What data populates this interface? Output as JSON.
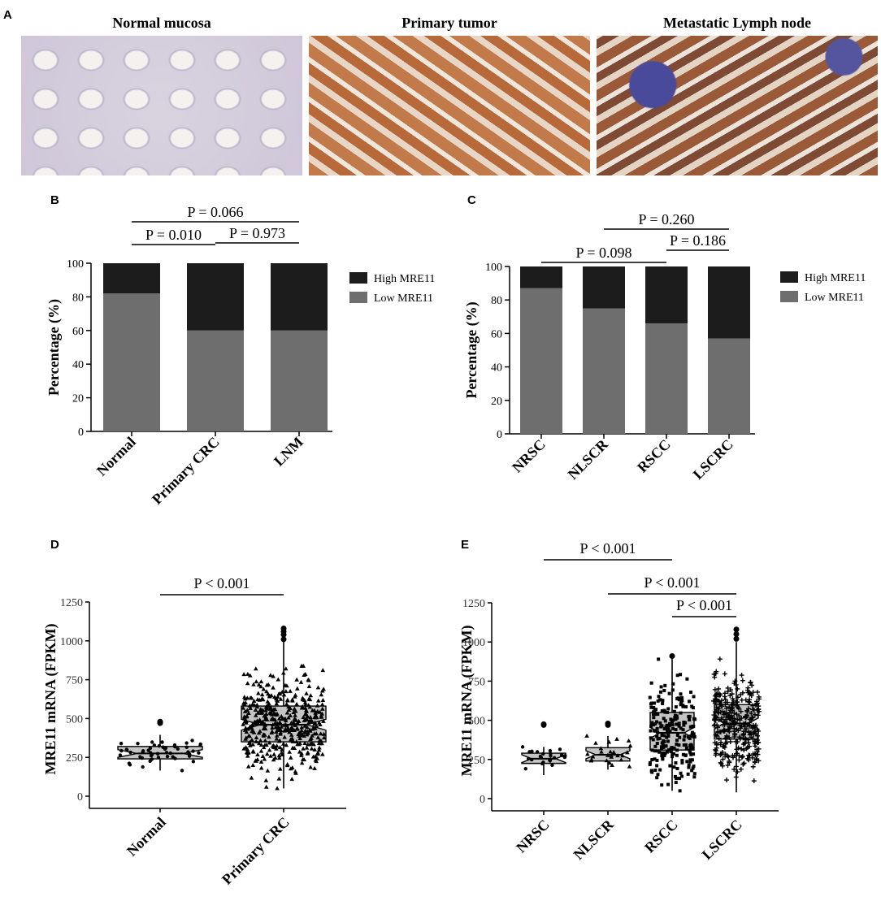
{
  "panels": {
    "A": "A",
    "B": "B",
    "C": "C",
    "D": "D",
    "E": "E"
  },
  "images": {
    "normal_title": "Normal mucosa",
    "primary_title": "Primary tumor",
    "meta_title": "Metastatic Lymph node"
  },
  "colors": {
    "high": "#1c1c1c",
    "low": "#6e6e6e",
    "box": "#c4c4c4"
  },
  "chart_data": [
    {
      "panel": "B",
      "type": "bar",
      "stacked": true,
      "categories": [
        "Normal",
        "Primary CRC",
        "LNM"
      ],
      "series": [
        {
          "name": "Low MRE11",
          "values": [
            82,
            60,
            60
          ]
        },
        {
          "name": "High MRE11",
          "values": [
            18,
            40,
            40
          ]
        }
      ],
      "ylabel": "Percentage (%)",
      "ylim": [
        0,
        100
      ],
      "yticks": [
        "0",
        "20",
        "40",
        "60",
        "80",
        "100"
      ],
      "legend": [
        "High MRE11",
        "Low MRE11"
      ],
      "legend_position": "right",
      "annotations": [
        {
          "text": "P = 0.066",
          "from": 0,
          "to": 2
        },
        {
          "text": "P = 0.010",
          "from": 0,
          "to": 1
        },
        {
          "text": "P = 0.973",
          "from": 1,
          "to": 2
        }
      ]
    },
    {
      "panel": "C",
      "type": "bar",
      "stacked": true,
      "categories": [
        "NRSC",
        "NLSCR",
        "RSCC",
        "LSCRC"
      ],
      "series": [
        {
          "name": "Low MRE11",
          "values": [
            87,
            75,
            66,
            57
          ]
        },
        {
          "name": "High MRE11",
          "values": [
            13,
            25,
            34,
            43
          ]
        }
      ],
      "ylabel": "Percentage (%)",
      "ylim": [
        0,
        100
      ],
      "yticks": [
        "0",
        "20",
        "40",
        "60",
        "80",
        "100"
      ],
      "legend": [
        "High MRE11",
        "Low MRE11"
      ],
      "legend_position": "right",
      "annotations": [
        {
          "text": "P = 0.260",
          "from": 1,
          "to": 3
        },
        {
          "text": "P = 0.098",
          "from": 0,
          "to": 2
        },
        {
          "text": "P = 0.186",
          "from": 2,
          "to": 3
        }
      ]
    },
    {
      "panel": "D",
      "type": "scatter",
      "subtype": "notched boxplot with jittered points",
      "categories": [
        "Normal",
        "Primary CRC"
      ],
      "boxes": [
        {
          "q1": 240,
          "median": 275,
          "q3": 320,
          "whisker_low": 165,
          "whisker_high": 395,
          "notch": 25,
          "outliers": [
            470,
            480
          ],
          "n_points": 50
        },
        {
          "q1": 350,
          "median": 460,
          "q3": 580,
          "whisker_low": 50,
          "whisker_high": 1000,
          "notch": 35,
          "outliers": [
            1010,
            1040,
            1060,
            1080
          ],
          "n_points": 450
        }
      ],
      "ylabel": "MRE11 mRNA (FPKM)",
      "ylim": [
        0,
        1250
      ],
      "yticks": [
        "0",
        "250",
        "500",
        "750",
        "1000",
        "1250"
      ],
      "annotations": [
        {
          "text": "P < 0.001",
          "from": 0,
          "to": 1
        }
      ]
    },
    {
      "panel": "E",
      "type": "scatter",
      "subtype": "notched boxplot with jittered points",
      "categories": [
        "NRSC",
        "NLSCR",
        "RSCC",
        "LSCRC"
      ],
      "boxes": [
        {
          "q1": 225,
          "median": 255,
          "q3": 290,
          "whisker_low": 150,
          "whisker_high": 330,
          "notch": 25,
          "outliers": [
            470,
            475
          ],
          "n_points": 25
        },
        {
          "q1": 240,
          "median": 280,
          "q3": 325,
          "whisker_low": 185,
          "whisker_high": 400,
          "notch": 25,
          "outliers": [
            470,
            480
          ],
          "n_points": 25
        },
        {
          "q1": 310,
          "median": 420,
          "q3": 550,
          "whisker_low": 50,
          "whisker_high": 900,
          "notch": 35,
          "outliers": [
            910
          ],
          "n_points": 230
        },
        {
          "q1": 380,
          "median": 480,
          "q3": 600,
          "whisker_low": 40,
          "whisker_high": 1000,
          "notch": 35,
          "outliers": [
            1020,
            1050,
            1080
          ],
          "n_points": 330
        }
      ],
      "ylabel": "MRE11 mRNA (FPKM)",
      "ylim": [
        0,
        1250
      ],
      "yticks": [
        "0",
        "250",
        "500",
        "750",
        "1000",
        "1250"
      ],
      "annotations": [
        {
          "text": "P < 0.001",
          "from": 0,
          "to": 2
        },
        {
          "text": "P < 0.001",
          "from": 1,
          "to": 3
        },
        {
          "text": "P < 0.001",
          "from": 2,
          "to": 3
        }
      ]
    }
  ]
}
